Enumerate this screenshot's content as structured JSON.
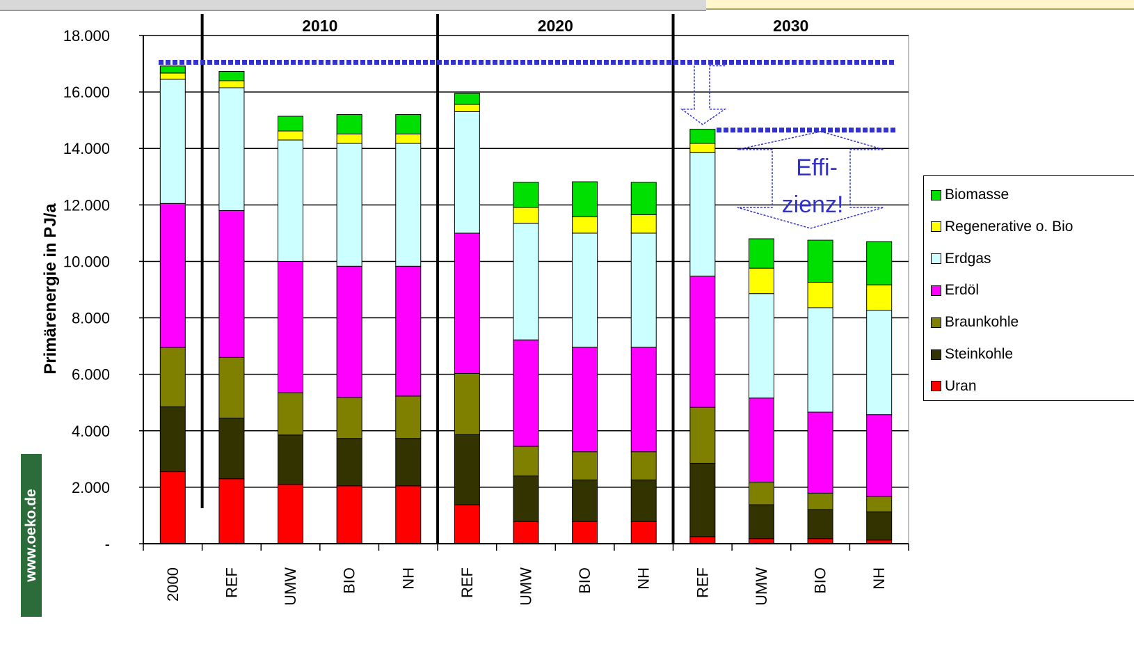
{
  "watermark": "www.oeko.de",
  "annotation": {
    "line1": "Effi-",
    "line2": "zienz!"
  },
  "colors": {
    "Biomasse": "#00e000",
    "Regenerative o. Bio": "#ffff00",
    "Erdgas": "#ccffff",
    "Erdöl": "#ff00ff",
    "Braunkohle": "#808000",
    "Steinkohle": "#333300",
    "Uran": "#ff0000",
    "reference_line": "#3333cc",
    "annotation": "#3333cc"
  },
  "chart_data": {
    "type": "bar",
    "stacked": true,
    "ylabel": "Primärenergie in PJ/a",
    "ylim": [
      0,
      18000
    ],
    "yticks": [
      {
        "value": 0,
        "label": "-"
      },
      {
        "value": 2000,
        "label": "2.000"
      },
      {
        "value": 4000,
        "label": "4.000"
      },
      {
        "value": 6000,
        "label": "6.000"
      },
      {
        "value": 8000,
        "label": "8.000"
      },
      {
        "value": 10000,
        "label": "10.000"
      },
      {
        "value": 12000,
        "label": "12.000"
      },
      {
        "value": 14000,
        "label": "14.000"
      },
      {
        "value": 16000,
        "label": "16.000"
      },
      {
        "value": 18000,
        "label": "18.000"
      }
    ],
    "grid": true,
    "legend_position": "right",
    "groups": [
      "2010",
      "2020",
      "2030"
    ],
    "categories": [
      "2000",
      "REF",
      "UMW",
      "BIO",
      "NH",
      "REF",
      "UMW",
      "BIO",
      "NH",
      "REF",
      "UMW",
      "BIO",
      "NH"
    ],
    "series": [
      {
        "name": "Uran",
        "values": [
          2550,
          2300,
          2100,
          2050,
          2050,
          1380,
          780,
          780,
          780,
          250,
          180,
          180,
          130
        ]
      },
      {
        "name": "Steinkohle",
        "values": [
          2300,
          2150,
          1750,
          1680,
          1680,
          2480,
          1620,
          1480,
          1480,
          2600,
          1200,
          1030,
          1000
        ]
      },
      {
        "name": "Braunkohle",
        "values": [
          2100,
          2150,
          1500,
          1450,
          1500,
          2170,
          1050,
          1000,
          1000,
          1980,
          800,
          580,
          540
        ]
      },
      {
        "name": "Erdöl",
        "values": [
          5100,
          5200,
          4650,
          4650,
          4600,
          4970,
          3770,
          3700,
          3700,
          4650,
          2980,
          2870,
          2900
        ]
      },
      {
        "name": "Erdgas",
        "values": [
          4400,
          4350,
          4300,
          4350,
          4350,
          4300,
          4130,
          4040,
          4040,
          4370,
          3700,
          3700,
          3700
        ]
      },
      {
        "name": "Regenerative o. Bio",
        "values": [
          220,
          250,
          320,
          330,
          330,
          260,
          560,
          580,
          650,
          330,
          900,
          900,
          900
        ]
      },
      {
        "name": "Biomasse",
        "values": [
          250,
          330,
          520,
          690,
          690,
          390,
          890,
          1240,
          1150,
          500,
          1040,
          1490,
          1530
        ]
      }
    ],
    "reference_lines": [
      {
        "value": 17050,
        "span": "all"
      },
      {
        "value": 14650,
        "span": "2030"
      }
    ]
  }
}
